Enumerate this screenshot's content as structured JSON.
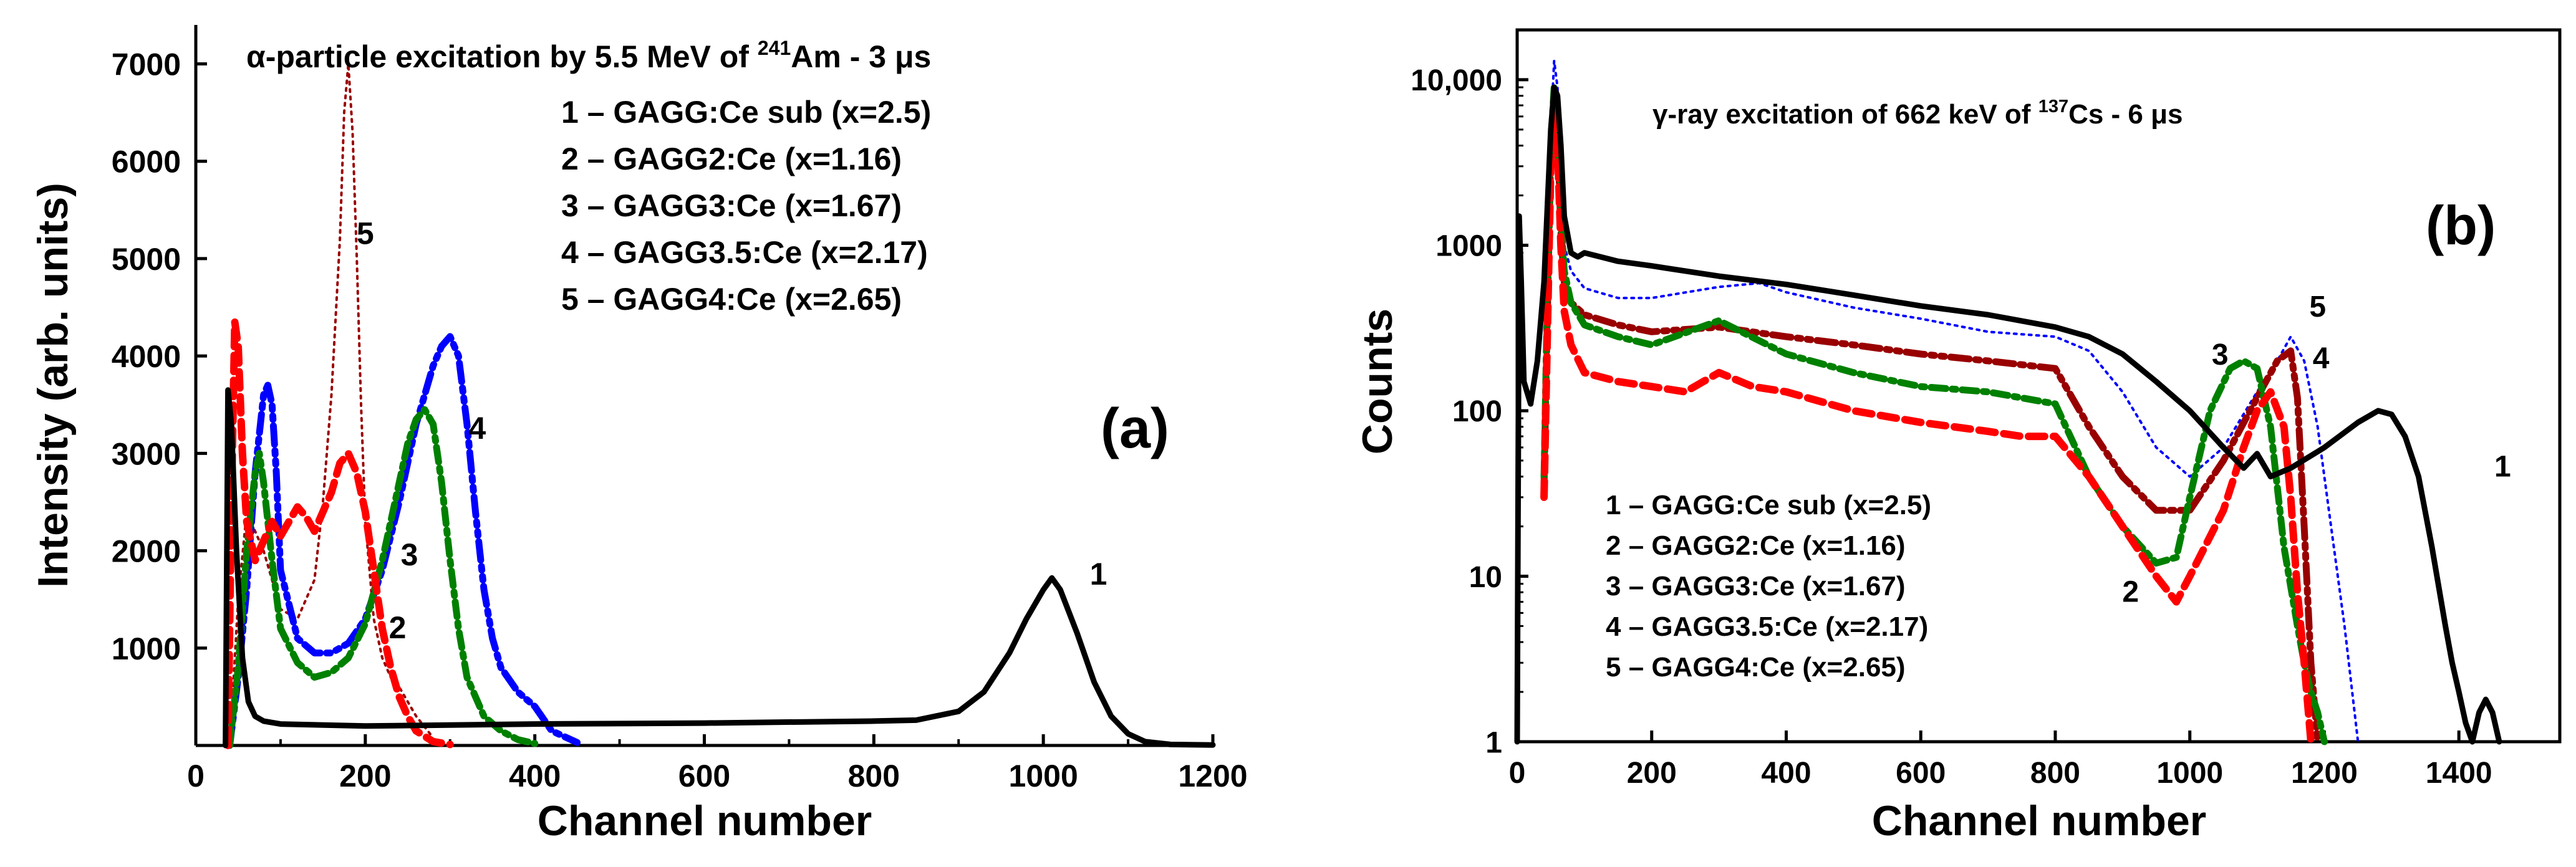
{
  "chart_data": [
    {
      "panel": "(a)",
      "type": "line",
      "title": {
        "prefix": "α-particle excitation by 5.5 MeV of ",
        "sup": "241",
        "suffix": "Am - 3 μs"
      },
      "xlabel": "Channel number",
      "ylabel": "Intensity (arb. units)",
      "xlim": [
        0,
        1200
      ],
      "ylim": [
        0,
        7400
      ],
      "xticks": [
        0,
        200,
        400,
        600,
        800,
        1000,
        1200
      ],
      "yticks": [
        1000,
        2000,
        3000,
        4000,
        5000,
        6000,
        7000
      ],
      "grid": false,
      "legend_position": "top-right",
      "legend": [
        "1 – GAGG:Ce sub (x=2.5)",
        "2 – GAGG2:Ce (x=1.16)",
        "3 – GAGG3:Ce (x=1.67)",
        "4 – GAGG3.5:Ce (x=2.17)",
        "5 – GAGG4:Ce (x=2.65)"
      ],
      "series": [
        {
          "name": "1",
          "color": "#000000",
          "x": [
            35,
            38,
            42,
            48,
            55,
            62,
            70,
            80,
            100,
            200,
            400,
            600,
            800,
            850,
            900,
            930,
            960,
            980,
            1000,
            1010,
            1020,
            1040,
            1060,
            1080,
            1100,
            1120,
            1150,
            1200
          ],
          "y": [
            0,
            3650,
            3300,
            2000,
            900,
            450,
            300,
            250,
            220,
            200,
            220,
            230,
            250,
            260,
            350,
            550,
            950,
            1300,
            1600,
            1720,
            1600,
            1150,
            650,
            300,
            120,
            40,
            10,
            5
          ]
        },
        {
          "name": "2",
          "color": "#ff0000",
          "x": [
            38,
            42,
            46,
            50,
            55,
            60,
            70,
            80,
            90,
            100,
            110,
            120,
            130,
            140,
            150,
            160,
            170,
            180,
            190,
            200,
            210,
            220,
            230,
            240,
            250,
            260,
            280,
            300
          ],
          "y": [
            0,
            2500,
            4350,
            4100,
            3000,
            2300,
            1900,
            2100,
            2300,
            2150,
            2300,
            2450,
            2350,
            2200,
            2400,
            2600,
            2900,
            3000,
            2800,
            2400,
            1800,
            1200,
            800,
            500,
            300,
            150,
            40,
            10
          ]
        },
        {
          "name": "3",
          "color": "#008000",
          "x": [
            40,
            50,
            60,
            70,
            75,
            80,
            90,
            100,
            120,
            140,
            160,
            180,
            200,
            220,
            240,
            250,
            260,
            270,
            280,
            290,
            300,
            310,
            320,
            340,
            360,
            380,
            400
          ],
          "y": [
            0,
            800,
            2000,
            2800,
            3000,
            2700,
            1900,
            1200,
            850,
            700,
            750,
            900,
            1250,
            1900,
            2700,
            3100,
            3350,
            3450,
            3300,
            2700,
            1900,
            1200,
            700,
            300,
            150,
            60,
            20
          ]
        },
        {
          "name": "4",
          "color": "#0000ff",
          "x": [
            40,
            50,
            60,
            70,
            80,
            85,
            90,
            95,
            100,
            120,
            140,
            160,
            180,
            200,
            220,
            240,
            260,
            280,
            290,
            300,
            310,
            320,
            330,
            340,
            350,
            360,
            380,
            400,
            420,
            450
          ],
          "y": [
            0,
            700,
            1600,
            2800,
            3600,
            3700,
            3500,
            2800,
            1800,
            1100,
            950,
            950,
            1050,
            1300,
            1800,
            2500,
            3300,
            3900,
            4100,
            4200,
            4000,
            3300,
            2400,
            1600,
            1100,
            800,
            550,
            400,
            150,
            30
          ]
        },
        {
          "name": "5",
          "color": "#990000",
          "x": [
            40,
            50,
            60,
            80,
            100,
            120,
            140,
            150,
            160,
            170,
            175,
            180,
            185,
            190,
            195,
            200,
            210,
            220,
            230,
            240,
            260,
            280
          ],
          "y": [
            0,
            1500,
            2400,
            2000,
            1400,
            1300,
            1700,
            2500,
            3600,
            5200,
            6500,
            7000,
            6300,
            5000,
            3500,
            2300,
            1300,
            900,
            700,
            600,
            300,
            80
          ]
        }
      ],
      "annotations": [
        {
          "text": "1",
          "x": 1065,
          "y": 1650
        },
        {
          "text": "2",
          "x": 238,
          "y": 1100
        },
        {
          "text": "3",
          "x": 252,
          "y": 1850
        },
        {
          "text": "4",
          "x": 332,
          "y": 3150
        },
        {
          "text": "5",
          "x": 200,
          "y": 5150
        }
      ],
      "panel_label": "(a)"
    },
    {
      "panel": "(b)",
      "type": "line",
      "title": {
        "prefix": "γ-ray excitation of 662 keV of ",
        "sup": "137",
        "suffix": "Cs - 6 μs"
      },
      "xlabel": "Channel number",
      "ylabel": "Counts",
      "xscale": "linear",
      "yscale": "log",
      "xlim": [
        0,
        1550
      ],
      "ylim": [
        1,
        20000
      ],
      "xticks": [
        0,
        200,
        400,
        600,
        800,
        1000,
        1200,
        1400
      ],
      "yticks": [
        1,
        10,
        100,
        1000,
        10000
      ],
      "ytick_labels": [
        "1",
        "10",
        "100",
        "1000",
        "10,000"
      ],
      "grid": false,
      "legend_position": "bottom-left",
      "legend": [
        "1 – GAGG:Ce sub (x=2.5)",
        "2 – GAGG2:Ce (x=1.16)",
        "3 – GAGG3:Ce (x=1.67)",
        "4 – GAGG3.5:Ce (x=2.17)",
        "5 – GAGG4:Ce (x=2.65)"
      ],
      "series": [
        {
          "name": "1",
          "color": "#000000",
          "x": [
            0,
            3,
            6,
            10,
            20,
            30,
            40,
            50,
            55,
            60,
            65,
            70,
            80,
            90,
            100,
            150,
            200,
            300,
            400,
            500,
            600,
            700,
            800,
            850,
            900,
            950,
            1000,
            1050,
            1080,
            1100,
            1120,
            1150,
            1200,
            1250,
            1280,
            1300,
            1320,
            1340,
            1360,
            1380,
            1390,
            1400,
            1410,
            1420,
            1430,
            1440,
            1450,
            1460
          ],
          "y": [
            1,
            1500,
            600,
            150,
            110,
            200,
            600,
            5000,
            9000,
            8000,
            4000,
            1500,
            900,
            850,
            900,
            800,
            750,
            650,
            580,
            500,
            430,
            380,
            320,
            280,
            220,
            150,
            100,
            60,
            45,
            55,
            40,
            45,
            60,
            85,
            100,
            95,
            70,
            40,
            15,
            5,
            3,
            2,
            1.3,
            1,
            1.5,
            1.8,
            1.5,
            1
          ]
        },
        {
          "name": "2",
          "color": "#ff0000",
          "x": [
            40,
            45,
            50,
            55,
            60,
            65,
            70,
            80,
            100,
            150,
            200,
            250,
            300,
            350,
            400,
            500,
            600,
            700,
            750,
            800,
            850,
            900,
            950,
            980,
            1000,
            1050,
            1080,
            1100,
            1120,
            1140,
            1150,
            1160,
            1170,
            1180
          ],
          "y": [
            30,
            300,
            3000,
            7000,
            4000,
            1000,
            400,
            250,
            170,
            150,
            140,
            130,
            170,
            140,
            130,
            100,
            85,
            75,
            70,
            70,
            40,
            20,
            10,
            7,
            10,
            25,
            60,
            100,
            130,
            80,
            30,
            8,
            3,
            1
          ]
        },
        {
          "name": "3",
          "color": "#008000",
          "x": [
            40,
            45,
            50,
            55,
            60,
            65,
            70,
            80,
            100,
            150,
            200,
            300,
            400,
            500,
            600,
            700,
            800,
            850,
            900,
            950,
            980,
            1000,
            1030,
            1060,
            1080,
            1100,
            1120,
            1140,
            1160,
            1170,
            1180,
            1190,
            1200
          ],
          "y": [
            40,
            500,
            4000,
            9000,
            6000,
            1500,
            700,
            450,
            330,
            280,
            250,
            350,
            220,
            170,
            140,
            130,
            110,
            40,
            20,
            12,
            13,
            30,
            100,
            180,
            200,
            180,
            80,
            15,
            5,
            3,
            2,
            1.5,
            1
          ]
        },
        {
          "name": "4",
          "color": "#990000",
          "x": [
            40,
            45,
            50,
            55,
            60,
            65,
            70,
            80,
            100,
            150,
            200,
            300,
            400,
            500,
            600,
            700,
            800,
            850,
            900,
            950,
            1000,
            1050,
            1100,
            1130,
            1150,
            1160,
            1170,
            1180,
            1190
          ],
          "y": [
            35,
            400,
            3500,
            8000,
            5000,
            1200,
            600,
            450,
            380,
            330,
            300,
            320,
            280,
            250,
            220,
            200,
            180,
            80,
            40,
            25,
            25,
            50,
            120,
            200,
            230,
            120,
            20,
            3,
            1
          ]
        },
        {
          "name": "5",
          "color": "#0000ff",
          "x": [
            40,
            45,
            50,
            55,
            60,
            65,
            70,
            80,
            100,
            150,
            200,
            300,
            360,
            400,
            500,
            600,
            700,
            800,
            850,
            900,
            950,
            1000,
            1050,
            1100,
            1130,
            1150,
            1170,
            1190,
            1210,
            1230,
            1250
          ],
          "y": [
            30,
            500,
            5000,
            13000,
            9000,
            2500,
            1000,
            700,
            550,
            480,
            480,
            560,
            590,
            520,
            420,
            360,
            300,
            280,
            230,
            130,
            60,
            40,
            60,
            130,
            200,
            280,
            200,
            80,
            20,
            5,
            1
          ]
        }
      ],
      "annotations": [
        {
          "text": "1",
          "x": 1465,
          "y": 40
        },
        {
          "text": "2",
          "x": 912,
          "y": 7
        },
        {
          "text": "3",
          "x": 1045,
          "y": 190
        },
        {
          "text": "4",
          "x": 1195,
          "y": 180
        },
        {
          "text": "5",
          "x": 1190,
          "y": 370
        }
      ],
      "panel_label": "(b)"
    }
  ]
}
